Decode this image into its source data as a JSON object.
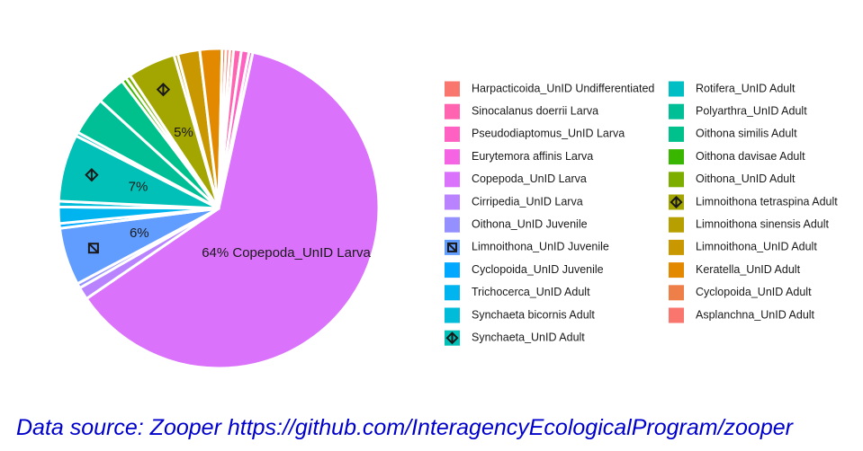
{
  "chart_data": {
    "type": "pie",
    "slices": [
      {
        "name": "Harpacticoida_UnID Undifferentiated",
        "value": 0.4,
        "color": "#F8766D"
      },
      {
        "name": "Sinocalanus doerrii Larva",
        "value": 0.8,
        "color": "#FF64B0"
      },
      {
        "name": "Pseudodiaptomus_UnID Larva",
        "value": 0.8,
        "color": "#FF61C3"
      },
      {
        "name": "Eurytemora affinis Larva",
        "value": 0.4,
        "color": "#F564E3"
      },
      {
        "name": "Copepoda_UnID Larva",
        "value": 64,
        "color": "#DB72FB"
      },
      {
        "name": "Cirripedia_UnID Larva",
        "value": 1.3,
        "color": "#B983FF"
      },
      {
        "name": "Oithona_UnID Juvenile",
        "value": 0.5,
        "color": "#9590FF"
      },
      {
        "name": "Limnoithona_UnID Juvenile",
        "value": 6,
        "color": "#619CFF",
        "marker": "square-x"
      },
      {
        "name": "Cyclopoida_UnID Juvenile",
        "value": 0.5,
        "color": "#00A9FF"
      },
      {
        "name": "Trichocerca_UnID Adult",
        "value": 1.7,
        "color": "#00B4F0"
      },
      {
        "name": "Synchaeta bicornis Adult",
        "value": 0.6,
        "color": "#00BCD8"
      },
      {
        "name": "Synchaeta_UnID Adult",
        "value": 7,
        "color": "#00C0B7",
        "marker": "diamond-plus"
      },
      {
        "name": "Rotifera_UnID Adult",
        "value": 0.4,
        "color": "#00BFC4"
      },
      {
        "name": "Polyarthra_UnID Adult",
        "value": 4,
        "color": "#00BF96"
      },
      {
        "name": "Oithona similis Adult",
        "value": 3,
        "color": "#00C08B"
      },
      {
        "name": "Oithona davisae Adult",
        "value": 0.5,
        "color": "#39B600"
      },
      {
        "name": "Oithona_UnID Adult",
        "value": 0.5,
        "color": "#7CAE00"
      },
      {
        "name": "Limnoithona tetraspina Adult",
        "value": 5,
        "color": "#A3A500",
        "marker": "diamond-plus"
      },
      {
        "name": "Limnoithona sinensis Adult",
        "value": 0.4,
        "color": "#B79F00"
      },
      {
        "name": "Limnoithona_UnID Adult",
        "value": 2.3,
        "color": "#C99800"
      },
      {
        "name": "Keratella_UnID Adult",
        "value": 2.3,
        "color": "#E38900"
      },
      {
        "name": "Cyclopoida_UnID Adult",
        "value": 0.4,
        "color": "#EF7F49"
      },
      {
        "name": "Asplanchna_UnID Adult",
        "value": 0.4,
        "color": "#F8766D"
      }
    ],
    "labels": [
      {
        "text": "64% Copepoda_UnID Larva",
        "slice": "Copepoda_UnID Larva"
      },
      {
        "text": "6%",
        "slice": "Limnoithona_UnID Juvenile"
      },
      {
        "text": "7%",
        "slice": "Synchaeta_UnID Adult"
      },
      {
        "text": "5%",
        "slice": "Limnoithona tetraspina Adult"
      }
    ],
    "legend_position": "right",
    "legend_columns": [
      [
        "Harpacticoida_UnID Undifferentiated",
        "Sinocalanus doerrii Larva",
        "Pseudodiaptomus_UnID Larva",
        "Eurytemora affinis Larva",
        "Copepoda_UnID Larva",
        "Cirripedia_UnID Larva",
        "Oithona_UnID Juvenile",
        "Limnoithona_UnID Juvenile",
        "Cyclopoida_UnID Juvenile",
        "Trichocerca_UnID Adult",
        "Synchaeta bicornis Adult",
        "Synchaeta_UnID Adult"
      ],
      [
        "Rotifera_UnID Adult",
        "Polyarthra_UnID Adult",
        "Oithona similis Adult",
        "Oithona davisae Adult",
        "Oithona_UnID Adult",
        "Limnoithona tetraspina Adult",
        "Limnoithona sinensis Adult",
        "Limnoithona_UnID Adult",
        "Keratella_UnID Adult",
        "Cyclopoida_UnID Adult",
        "Asplanchna_UnID Adult"
      ]
    ]
  },
  "source": "Data source: Zooper https://github.com/InteragencyEcologicalProgram/zooper"
}
